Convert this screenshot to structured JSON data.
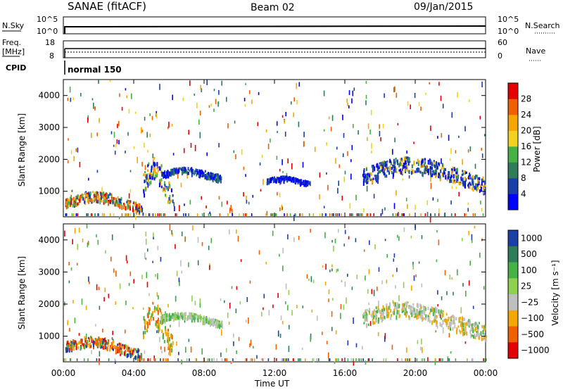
{
  "header": {
    "station": "SANAE (fitACF)",
    "beam": "Beam 02",
    "date": "09/Jan/2015"
  },
  "strips": {
    "nsky_label": "N.Sky",
    "nsky_ticks": [
      "10^5",
      "10^0"
    ],
    "nsearch_label": "N.Search",
    "nsearch_ticks": [
      "10^5",
      "10^0"
    ],
    "freq_label": "Freq.",
    "freq_unit": "[MHz]",
    "freq_ticks": [
      "18",
      "8"
    ],
    "nave_label": "Nave",
    "nave_ticks": [
      "60",
      "0"
    ],
    "cpid_label": "CPID",
    "cpid_value": "normal 150"
  },
  "chart_data": [
    {
      "type": "heatmap",
      "quantity": "Power",
      "ylabel": "Slant Range [km]",
      "yticks": [
        "1000",
        "2000",
        "3000",
        "4000"
      ],
      "ylim": [
        200,
        4500
      ],
      "xlim": [
        0,
        24
      ],
      "colorbar_label": "Power [dB]",
      "colorbar_ticks": [
        "4",
        "8",
        "12",
        "16",
        "20",
        "24",
        "28"
      ],
      "colorbar_colors": [
        "#0000ff",
        "#1a3fa8",
        "#2e7d5a",
        "#44b244",
        "#f2d21e",
        "#f5a600",
        "#f06000",
        "#e60000"
      ],
      "bands": [
        {
          "t0": 0.1,
          "t1": 4.5,
          "r0": 400,
          "r1": 900,
          "colors": [
            "#f5a600",
            "#f06000",
            "#44b244",
            "#1a3fa8",
            "#e60000"
          ]
        },
        {
          "t0": 4.5,
          "t1": 6.2,
          "r0": 600,
          "r1": 1800,
          "colors": [
            "#1a3fa8",
            "#0000ff",
            "#44b244",
            "#f5a600"
          ]
        },
        {
          "t0": 5.5,
          "t1": 9.0,
          "r0": 1400,
          "r1": 1700,
          "colors": [
            "#0000ff",
            "#1a3fa8",
            "#2e7d5a"
          ]
        },
        {
          "t0": 11.5,
          "t1": 14.0,
          "r0": 1250,
          "r1": 1450,
          "colors": [
            "#0000ff",
            "#1a3fa8"
          ]
        },
        {
          "t0": 17.0,
          "t1": 24.0,
          "r0": 1100,
          "r1": 1900,
          "colors": [
            "#0000ff",
            "#1a3fa8",
            "#2e7d5a",
            "#f5a600"
          ]
        }
      ]
    },
    {
      "type": "heatmap",
      "quantity": "Velocity",
      "ylabel": "Slant Range [km]",
      "yticks": [
        "1000",
        "2000",
        "3000",
        "4000"
      ],
      "ylim": [
        200,
        4500
      ],
      "xlim": [
        0,
        24
      ],
      "colorbar_label": "Velocity [m s⁻¹]",
      "colorbar_ticks": [
        "1000",
        "500",
        "100",
        "25",
        "−25",
        "−100",
        "−500",
        "−1000"
      ],
      "colorbar_colors": [
        "#1a3fa8",
        "#2e7d5a",
        "#44b244",
        "#8fd14f",
        "#bfbfbf",
        "#f5a600",
        "#f06000",
        "#e60000"
      ],
      "bands": [
        {
          "t0": 0.1,
          "t1": 4.5,
          "r0": 400,
          "r1": 900,
          "colors": [
            "#f5a600",
            "#f06000",
            "#44b244",
            "#1a3fa8",
            "#e60000"
          ]
        },
        {
          "t0": 4.5,
          "t1": 6.2,
          "r0": 600,
          "r1": 1800,
          "colors": [
            "#f5a600",
            "#f06000",
            "#44b244"
          ]
        },
        {
          "t0": 5.5,
          "t1": 9.0,
          "r0": 1400,
          "r1": 1700,
          "colors": [
            "#44b244",
            "#bfbfbf",
            "#8fd14f"
          ]
        },
        {
          "t0": 17.0,
          "t1": 24.0,
          "r0": 1100,
          "r1": 1900,
          "colors": [
            "#bfbfbf",
            "#bfbfbf",
            "#44b244",
            "#f5a600"
          ]
        }
      ]
    }
  ],
  "xaxis": {
    "label": "Time UT",
    "ticks": [
      "00:00",
      "04:00",
      "08:00",
      "12:00",
      "16:00",
      "20:00",
      "00:00"
    ]
  },
  "colors": {
    "axis": "#000000",
    "background": "#ffffff"
  }
}
